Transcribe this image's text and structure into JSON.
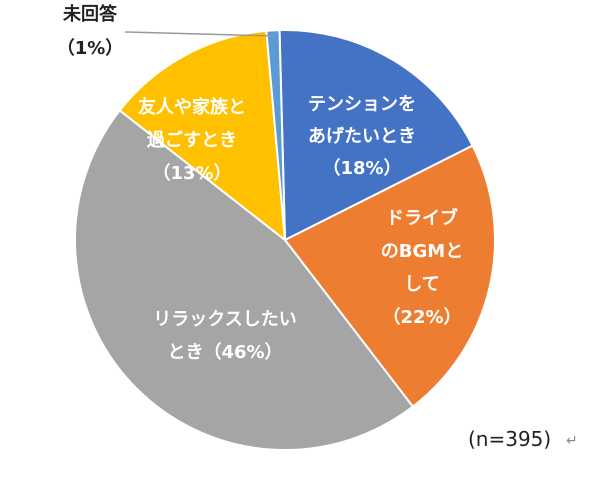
{
  "chart_data": {
    "type": "pie",
    "slices": [
      {
        "label_lines": [
          "テンションを",
          "あげたいとき",
          "（18%）"
        ],
        "value": 18,
        "color": "#4472c4"
      },
      {
        "label_lines": [
          "ドライブ",
          "のBGMと",
          "して",
          "（22%）"
        ],
        "value": 22,
        "color": "#ed7d31"
      },
      {
        "label_lines": [
          "リラックスしたい",
          "とき（46%）"
        ],
        "value": 46,
        "color": "#a5a5a5"
      },
      {
        "label_lines": [
          "友人や家族と",
          "過ごすとき",
          "（13%）"
        ],
        "value": 13,
        "color": "#ffc000"
      },
      {
        "label_lines": [
          "未回答",
          "（1%）"
        ],
        "value": 1,
        "color": "#5b9bd5"
      }
    ],
    "note": "(n=395)",
    "return_mark": "↵"
  }
}
